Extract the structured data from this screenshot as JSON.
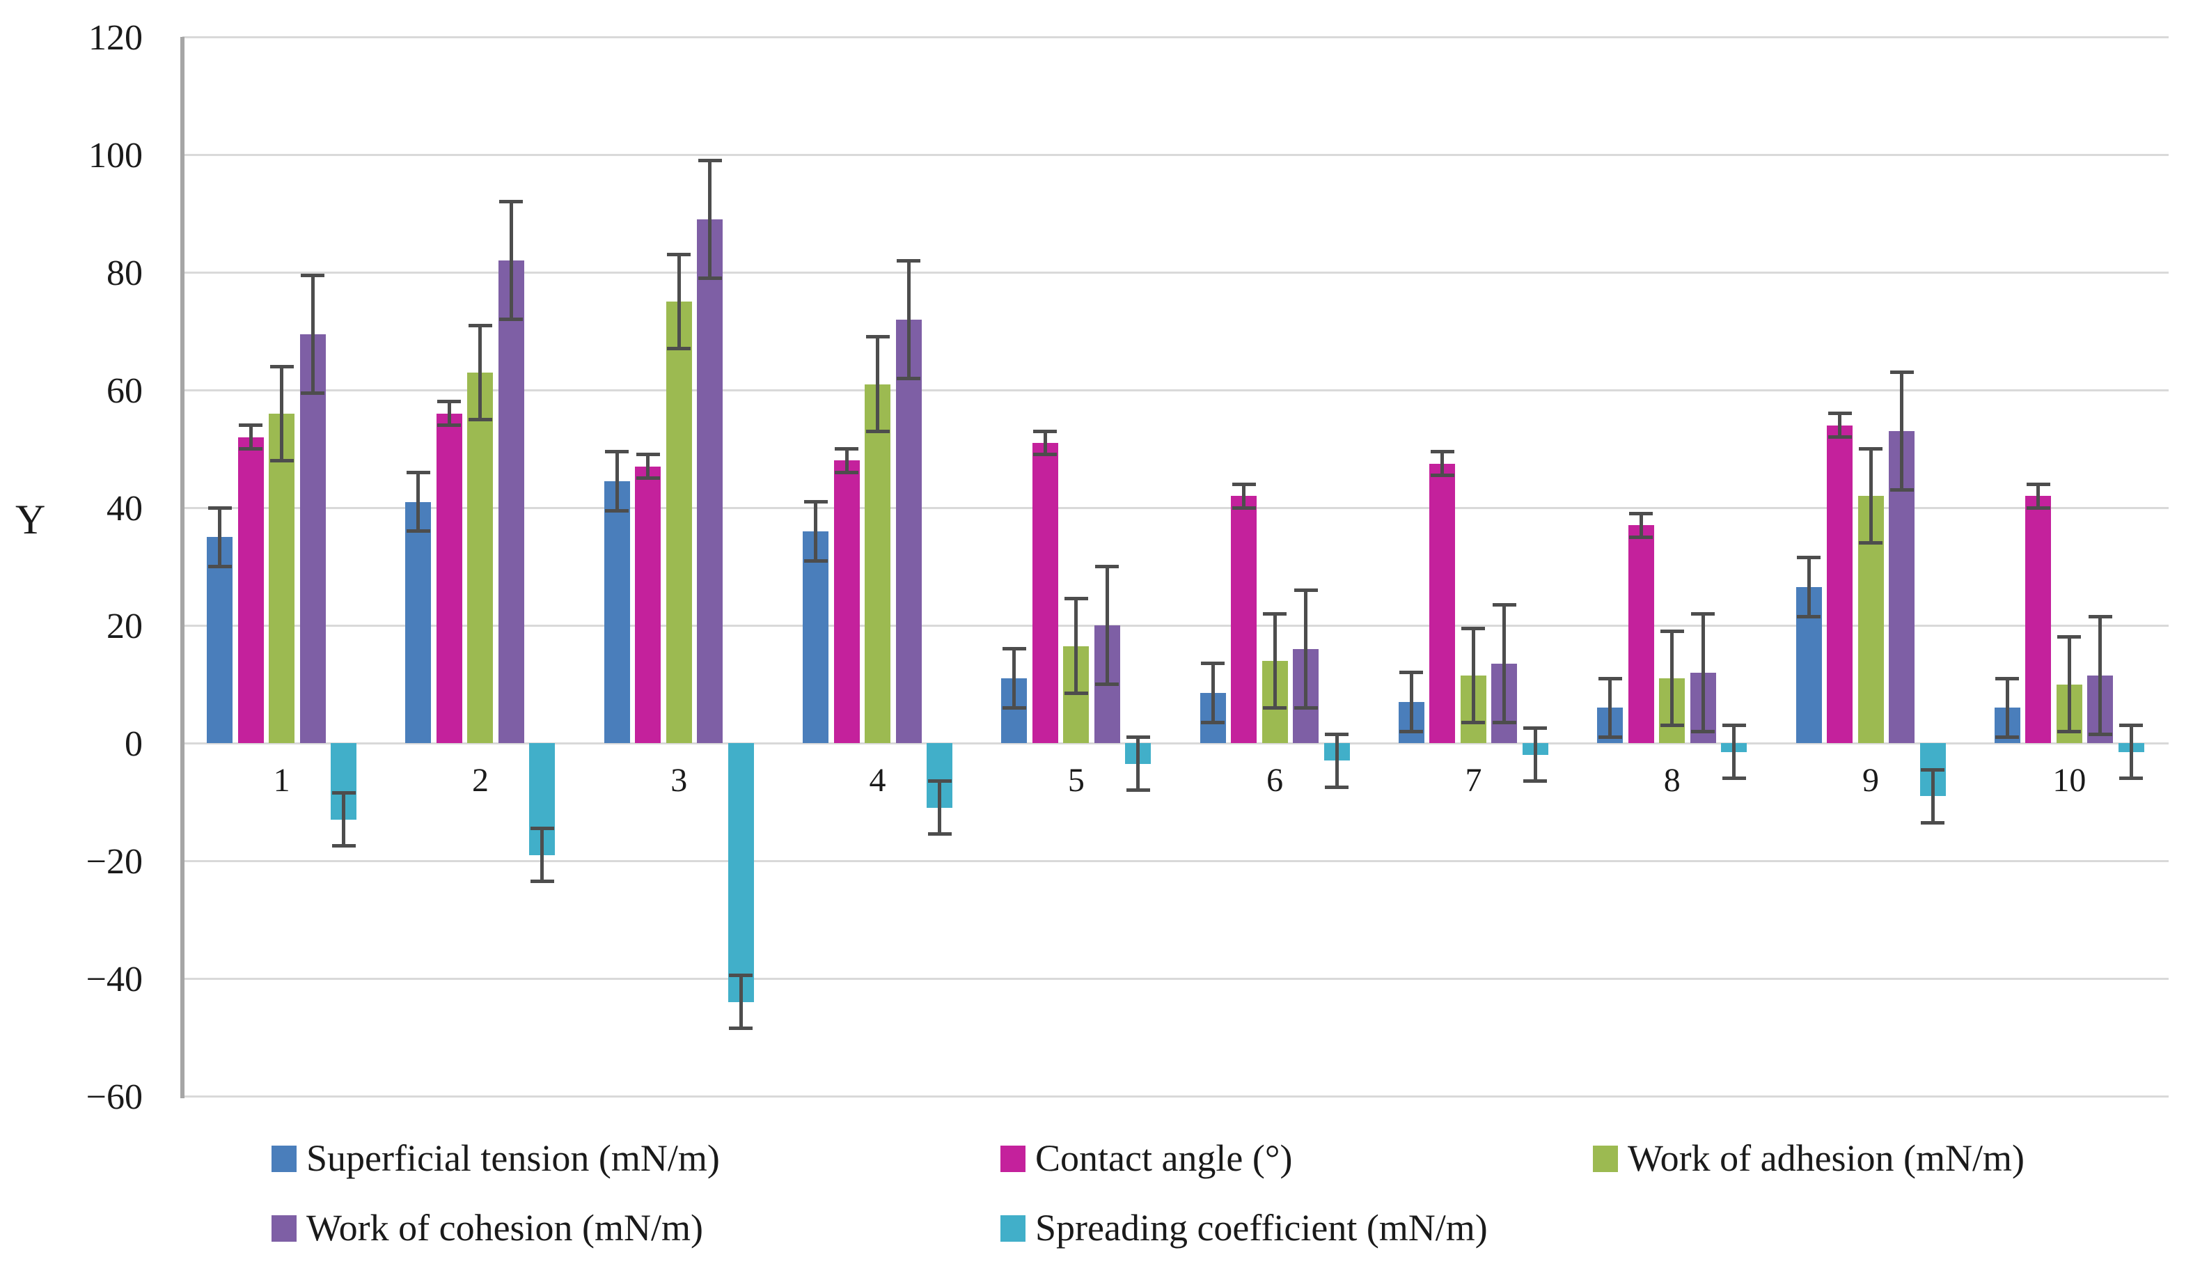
{
  "figure": {
    "background": "#ffffff",
    "text_color": "#1a1a1a",
    "gridline_color": "#d9d9d9",
    "axis_line_color": "#a6a6a6",
    "error_bar_color": "#4d4d4d"
  },
  "axes": {
    "y_title": "Y",
    "y_tick_labels": [
      "120",
      "100",
      "80",
      "60",
      "40",
      "20",
      "0",
      "−20",
      "−40",
      "−60"
    ],
    "x_tick_labels": [
      "1",
      "2",
      "3",
      "4",
      "5",
      "6",
      "7",
      "8",
      "9",
      "10"
    ]
  },
  "chart_data": {
    "type": "bar",
    "title": "",
    "xlabel": "",
    "ylabel": "Y",
    "ylim": [
      -60,
      120
    ],
    "y_tick_step": 20,
    "grid": true,
    "legend_position": "bottom",
    "error_bars": true,
    "categories": [
      "1",
      "2",
      "3",
      "4",
      "5",
      "6",
      "7",
      "8",
      "9",
      "10"
    ],
    "series": [
      {
        "name": "Superficial tension (mN/m)",
        "color": "#4a7ebb",
        "values": [
          35,
          41,
          44.5,
          36,
          11,
          8.5,
          7,
          6,
          26.5,
          6
        ],
        "errors": [
          5,
          5,
          5,
          5,
          5,
          5,
          5,
          5,
          5,
          5
        ]
      },
      {
        "name": "Contact angle (°)",
        "color": "#c4219c",
        "values": [
          52,
          56,
          47,
          48,
          51,
          42,
          47.5,
          37,
          54,
          42
        ],
        "errors": [
          2,
          2,
          2,
          2,
          2,
          2,
          2,
          2,
          2,
          2
        ]
      },
      {
        "name": "Work of adhesion (mN/m)",
        "color": "#9cba51",
        "values": [
          56,
          63,
          75,
          61,
          16.5,
          14,
          11.5,
          11,
          42,
          10
        ],
        "errors": [
          8,
          8,
          8,
          8,
          8,
          8,
          8,
          8,
          8,
          8
        ]
      },
      {
        "name": "Work of cohesion (mN/m)",
        "color": "#7e5fa5",
        "values": [
          69.5,
          82,
          89,
          72,
          20,
          16,
          13.5,
          12,
          53,
          11.5
        ],
        "errors": [
          10,
          10,
          10,
          10,
          10,
          10,
          10,
          10,
          10,
          10
        ]
      },
      {
        "name": "Spreading coefficient (mN/m)",
        "color": "#41afc9",
        "values": [
          -13,
          -19,
          -44,
          -11,
          -3.5,
          -3,
          -2,
          -1.5,
          -9,
          -1.5
        ],
        "errors": [
          4.5,
          4.5,
          4.5,
          4.5,
          4.5,
          4.5,
          4.5,
          4.5,
          4.5,
          4.5
        ]
      }
    ]
  }
}
